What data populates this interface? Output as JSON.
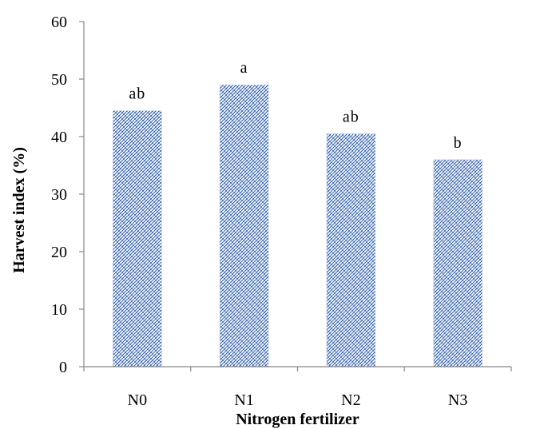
{
  "chart_data": {
    "type": "bar",
    "categories": [
      "N0",
      "N1",
      "N2",
      "N3"
    ],
    "values": [
      44.5,
      49,
      40.5,
      36
    ],
    "significance_labels": [
      "ab",
      "a",
      "ab",
      "b"
    ],
    "xlabel": "Nitrogen fertilizer",
    "ylabel": "Harvest index (%)",
    "ylim": [
      0,
      60
    ],
    "yticks": [
      "0",
      "10",
      "20",
      "30",
      "40",
      "50",
      "60"
    ],
    "grid": false,
    "legend": "none",
    "bar_color": "#2b5aa8",
    "bar_background": "#ffffff"
  }
}
